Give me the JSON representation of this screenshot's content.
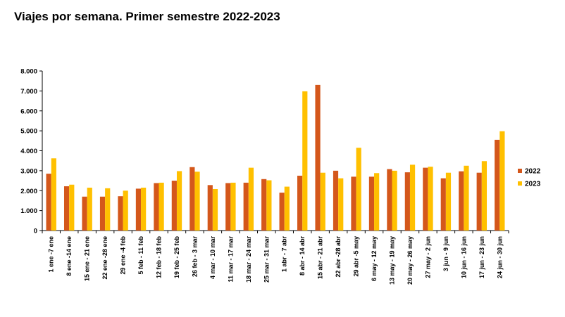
{
  "chart_data": {
    "type": "bar",
    "title": "Viajes por semana. Primer semestre 2022-2023",
    "xlabel": "",
    "ylabel": "",
    "ylim": [
      0,
      8000
    ],
    "yticks": [
      "0",
      "1.000",
      "2.000",
      "3.000",
      "4.000",
      "5.000",
      "6.000",
      "7.000",
      "8.000"
    ],
    "grid": false,
    "legend_position": "right",
    "categories": [
      "1 ene -7 ene",
      "8 ene -14 ene",
      "15 ene - 21 ene",
      "22 ene -28 ene",
      "29 ene -4 feb",
      "5 feb - 11 feb",
      "12 feb - 18 feb",
      "19 feb - 25 feb",
      "26 feb - 3 mar",
      "4 mar - 10 mar",
      "11 mar - 17 mar",
      "18 mar - 24 mar",
      "25 mar - 31 mar",
      "1 abr - 7 abr",
      "8 abr - 14 abr",
      "15 abr - 21 abr",
      "22 abr -28 abr",
      "29 abr -5 may",
      "6 may - 12 may",
      "13 may - 19 may",
      "20 may - 26 may",
      "27 may - 2 jun",
      "3 jun - 9 jun",
      "10 jun - 16 jun",
      "17 jun - 23 jun",
      "24 jun - 30 jun"
    ],
    "series": [
      {
        "name": "2022",
        "color": "#D4571B",
        "values": [
          2850,
          2220,
          1700,
          1700,
          1720,
          2100,
          2380,
          2500,
          3180,
          2280,
          2380,
          2400,
          2580,
          1900,
          2750,
          7300,
          3000,
          2700,
          2700,
          3080,
          2920,
          3150,
          2620,
          2970,
          2900,
          4550
        ]
      },
      {
        "name": "2023",
        "color": "#FFC000",
        "values": [
          3620,
          2300,
          2150,
          2120,
          2000,
          2150,
          2400,
          2980,
          2950,
          2080,
          2400,
          3150,
          2520,
          2200,
          6980,
          2900,
          2620,
          4150,
          2880,
          3000,
          3300,
          3200,
          2900,
          3250,
          3480,
          4980
        ]
      }
    ]
  }
}
